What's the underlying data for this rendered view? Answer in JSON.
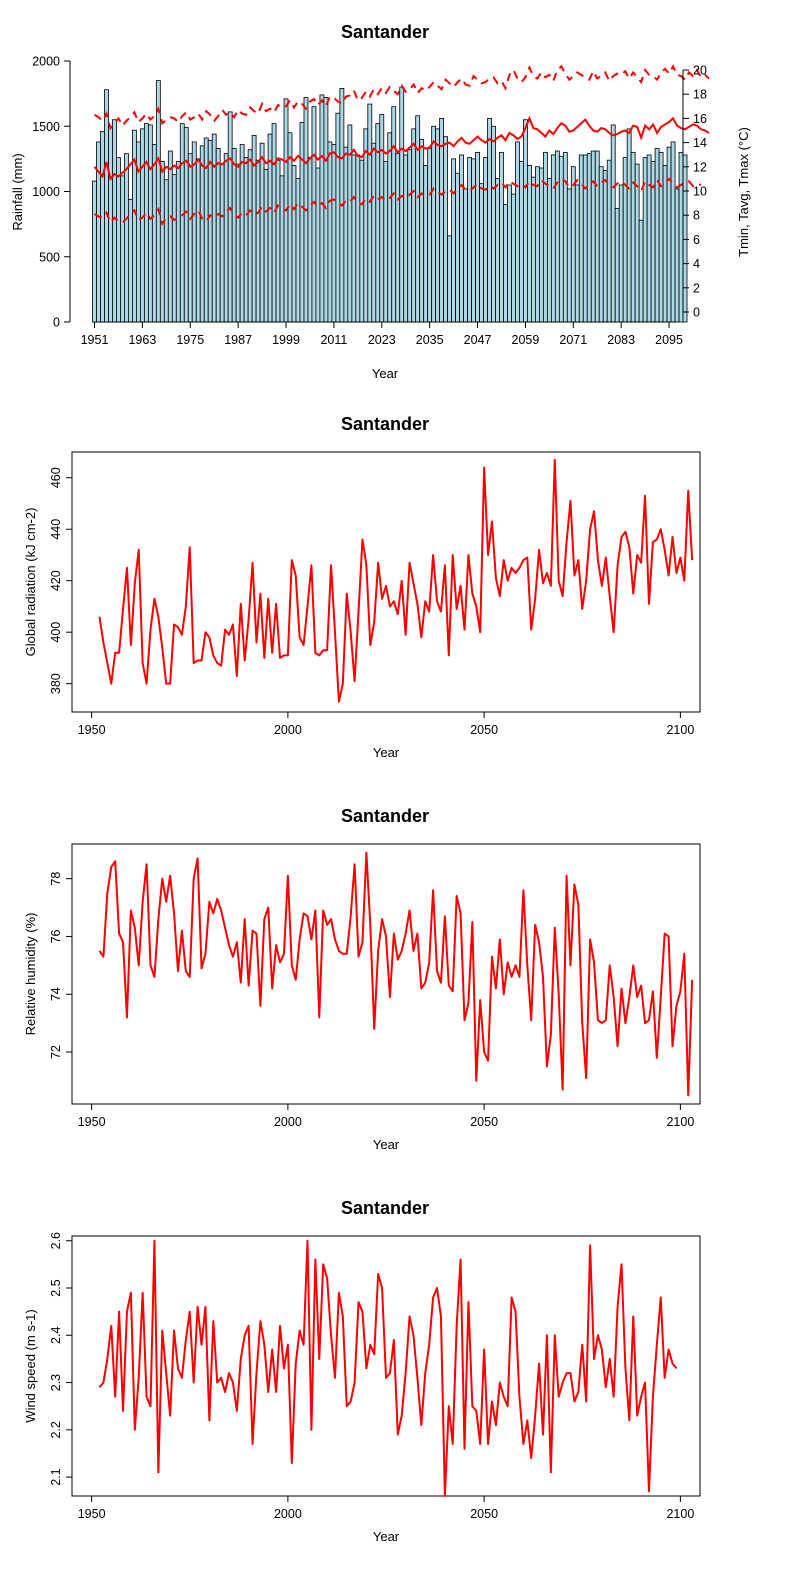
{
  "colors": {
    "line": "#ff0000",
    "bar_fill": "#add8e6",
    "bar_stroke": "#000000"
  },
  "chart_data": [
    {
      "type": "bar+line",
      "title": "Santander",
      "xlabel": "Year",
      "ylabel_left": "Rainfall (mm)",
      "ylabel_right": "Tmin, Tavg, Tmax (°C)",
      "ylim_left": [
        0,
        2000
      ],
      "ylim_right": [
        0,
        20
      ],
      "left_ticks": [
        "0",
        "500",
        "1000",
        "1500",
        "2000"
      ],
      "right_ticks": [
        "0",
        "2",
        "4",
        "6",
        "8",
        "10",
        "12",
        "14",
        "16",
        "18",
        "20"
      ],
      "x_tick_labels": [
        "1951",
        "1963",
        "1975",
        "1987",
        "1999",
        "2011",
        "2023",
        "2035",
        "2047",
        "2059",
        "2071",
        "2083",
        "2095"
      ],
      "years": [
        1951,
        2099
      ],
      "rainfall": [
        1080,
        1380,
        1460,
        1780,
        1500,
        1550,
        1260,
        1120,
        1290,
        940,
        1470,
        1380,
        1480,
        1520,
        1510,
        1360,
        1850,
        1230,
        1090,
        1310,
        1130,
        1230,
        1520,
        1490,
        1290,
        1380,
        1250,
        1350,
        1410,
        1390,
        1440,
        1330,
        1210,
        1290,
        1610,
        1330,
        1210,
        1360,
        1260,
        1320,
        1430,
        1240,
        1370,
        1170,
        1440,
        1520,
        1240,
        1120,
        1710,
        1450,
        1200,
        1100,
        1530,
        1720,
        1260,
        1650,
        1180,
        1740,
        1720,
        1380,
        1360,
        1600,
        1790,
        1340,
        1510,
        1280,
        1280,
        1240,
        1480,
        1670,
        1370,
        1520,
        1590,
        1230,
        1450,
        1650,
        1290,
        1800,
        1280,
        1320,
        1480,
        1580,
        1400,
        1200,
        1330,
        1500,
        1480,
        1560,
        1420,
        660,
        1250,
        1140,
        1280,
        1020,
        1260,
        1250,
        1300,
        1060,
        1260,
        1560,
        1500,
        1100,
        1300,
        900,
        1050,
        980,
        1380,
        1230,
        1550,
        1200,
        1110,
        1190,
        1180,
        1300,
        1100,
        1280,
        1310,
        1270,
        1300,
        1020,
        1190,
        1050,
        1280,
        1280,
        1290,
        1310,
        1310,
        1190,
        1160,
        1240,
        1510,
        870,
        1050,
        1260,
        1480,
        1300,
        1210,
        780,
        1260,
        1280,
        1230,
        1330,
        1300,
        1200,
        1340,
        1380,
        1020,
        1300,
        1280
      ],
      "tavg": [
        12.0,
        11.6,
        11.2,
        12.4,
        11.0,
        11.4,
        11.2,
        11.5,
        11.8,
        12.2,
        12.6,
        11.6,
        12.0,
        12.4,
        11.8,
        12.2,
        12.7,
        11.6,
        12.0,
        11.8,
        12.1,
        11.9,
        12.3,
        12.5,
        12.0,
        12.2,
        12.6,
        12.1,
        11.9,
        12.4,
        12.0,
        12.3,
        12.2,
        12.5,
        12.7,
        12.2,
        12.0,
        12.4,
        12.3,
        12.6,
        12.1,
        12.4,
        12.8,
        12.3,
        12.5,
        12.2,
        12.7,
        12.6,
        12.4,
        12.8,
        12.5,
        12.9,
        12.6,
        12.3,
        12.7,
        13.0,
        12.6,
        12.9,
        12.5,
        13.1,
        13.2,
        12.8,
        12.7,
        13.1,
        13.0,
        13.4,
        12.9,
        12.8,
        13.3,
        13.0,
        13.5,
        13.2,
        13.4,
        13.1,
        13.3,
        13.7,
        13.2,
        13.5,
        13.3,
        13.6,
        13.9,
        13.4,
        13.7,
        13.5,
        13.6,
        14.1,
        13.8,
        13.7,
        13.9,
        14.0,
        13.7,
        14.1,
        14.4,
        14.0,
        13.9,
        14.2,
        14.5,
        14.2,
        14.0,
        14.3,
        14.1,
        14.4,
        14.6,
        14.2,
        14.8,
        14.6,
        14.3,
        14.5,
        15.2,
        16.0,
        15.2,
        15.1,
        14.8,
        14.5,
        15.0,
        14.7,
        15.2,
        15.6,
        15.4,
        14.9,
        15.0,
        15.3,
        15.6,
        15.9,
        15.4,
        15.0,
        14.9,
        15.2,
        15.1,
        14.8,
        14.6,
        14.7,
        14.9,
        15.0,
        14.8,
        15.4,
        15.3,
        14.4,
        15.4,
        15.1,
        15.5,
        14.8,
        15.3,
        15.5,
        15.7,
        16.0,
        15.4,
        15.2,
        15.1,
        15.3,
        15.5,
        15.4,
        15.1,
        15.0,
        14.8
      ],
      "tmax": [
        16.3,
        16.1,
        15.8,
        16.4,
        15.2,
        15.6,
        16.0,
        15.4,
        15.8,
        16.1,
        16.5,
        15.7,
        16.0,
        16.4,
        15.9,
        16.2,
        16.8,
        15.6,
        15.9,
        16.1,
        16.0,
        15.7,
        16.2,
        16.5,
        15.9,
        16.1,
        16.4,
        15.9,
        16.6,
        16.3,
        15.8,
        16.2,
        16.7,
        16.3,
        16.5,
        16.1,
        16.7,
        16.4,
        16.3,
        16.9,
        16.6,
        16.4,
        17.2,
        16.6,
        16.8,
        16.5,
        17.1,
        16.9,
        17.0,
        17.5,
        16.9,
        17.4,
        17.2,
        16.8,
        17.4,
        17.6,
        17.1,
        17.5,
        17.0,
        17.8,
        17.7,
        17.4,
        17.2,
        17.8,
        17.9,
        18.3,
        17.5,
        17.7,
        18.2,
        17.8,
        18.4,
        18.0,
        18.5,
        18.1,
        18.6,
        18.3,
        18.0,
        18.7,
        18.2,
        18.4,
        18.8,
        18.1,
        18.5,
        18.3,
        18.6,
        19.0,
        18.7,
        18.4,
        19.2,
        18.9,
        18.6,
        19.0,
        19.3,
        18.8,
        18.7,
        19.5,
        19.2,
        18.9,
        19.0,
        19.3,
        19.4,
        18.9,
        19.1,
        18.5,
        19.6,
        20.0,
        19.3,
        19.0,
        19.4,
        20.2,
        19.5,
        19.3,
        19.8,
        19.4,
        19.6,
        19.1,
        20.0,
        20.3,
        19.7,
        19.2,
        19.5,
        19.8,
        19.6,
        19.4,
        19.2,
        19.9,
        19.3,
        19.5,
        19.8,
        19.1,
        19.5,
        19.7,
        19.6,
        19.9,
        19.3,
        19.8,
        19.4,
        19.0,
        20.0,
        19.6,
        19.5,
        19.2,
        19.8,
        20.1,
        19.7,
        20.3,
        19.6,
        19.5,
        19.2,
        19.8,
        19.5,
        20.0,
        19.4,
        19.6,
        19.3
      ],
      "tmin": [
        8.1,
        7.9,
        7.8,
        8.2,
        7.4,
        7.8,
        7.5,
        7.4,
        7.7,
        8.1,
        8.4,
        7.6,
        7.8,
        8.2,
        7.7,
        8.0,
        8.5,
        7.3,
        7.8,
        7.9,
        7.6,
        7.8,
        8.0,
        8.3,
        7.7,
        8.1,
        8.4,
        7.7,
        7.5,
        8.0,
        7.8,
        8.1,
        7.9,
        8.3,
        8.6,
        8.0,
        7.8,
        8.2,
        8.0,
        8.4,
        8.1,
        8.2,
        8.7,
        8.3,
        8.6,
        8.2,
        8.8,
        8.5,
        8.4,
        8.9,
        8.5,
        9.0,
        8.7,
        8.4,
        8.8,
        9.1,
        8.7,
        9.0,
        8.6,
        9.2,
        9.3,
        9.0,
        8.8,
        9.2,
        9.1,
        9.5,
        9.0,
        8.9,
        9.4,
        9.1,
        9.6,
        9.3,
        9.5,
        9.2,
        9.4,
        9.8,
        9.3,
        9.6,
        9.4,
        9.7,
        10.0,
        9.5,
        9.8,
        9.6,
        9.7,
        10.2,
        9.9,
        9.7,
        10.0,
        10.1,
        9.8,
        10.2,
        10.5,
        10.1,
        10.0,
        10.3,
        10.6,
        10.2,
        10.1,
        10.4,
        10.2,
        10.5,
        10.7,
        10.3,
        10.8,
        10.6,
        10.4,
        10.6,
        10.3,
        10.8,
        10.5,
        10.4,
        10.9,
        10.6,
        10.4,
        10.2,
        10.7,
        11.0,
        10.8,
        10.3,
        10.5,
        10.9,
        10.6,
        10.2,
        10.5,
        10.8,
        10.4,
        10.7,
        10.9,
        10.5,
        10.3,
        10.6,
        10.8,
        10.5,
        10.2,
        10.7,
        10.4,
        10.0,
        10.8,
        10.5,
        10.3,
        10.9,
        10.4,
        10.7,
        11.0,
        10.6,
        10.3,
        10.5,
        10.7,
        10.8,
        10.4,
        10.6,
        10.5
      ]
    },
    {
      "type": "line",
      "title": "Santander",
      "xlabel": "Year",
      "ylabel": "Global radiation (kJ cm-2)",
      "xlim": [
        1945,
        2105
      ],
      "ylim": [
        369,
        470
      ],
      "x_ticks": [
        1950,
        2000,
        2050,
        2100
      ],
      "y_ticks": [
        380,
        400,
        420,
        440,
        460
      ],
      "x_start": 1952,
      "values": [
        406,
        396,
        388,
        380,
        392,
        392,
        409,
        425,
        395,
        419,
        432,
        388,
        380,
        401,
        413,
        406,
        394,
        380,
        380,
        403,
        402,
        399,
        410,
        433,
        388,
        389,
        389,
        400,
        398,
        391,
        388,
        387,
        401,
        399,
        403,
        383,
        411,
        389,
        405,
        427,
        396,
        415,
        390,
        413,
        392,
        411,
        390,
        391,
        391,
        428,
        422,
        398,
        395,
        410,
        426,
        392,
        391,
        393,
        393,
        426,
        400,
        373,
        380,
        415,
        400,
        381,
        408,
        436,
        426,
        395,
        404,
        427,
        413,
        418,
        410,
        412,
        407,
        420,
        399,
        427,
        419,
        411,
        398,
        412,
        408,
        430,
        412,
        408,
        426,
        391,
        430,
        409,
        418,
        401,
        430,
        415,
        410,
        400,
        464,
        430,
        443,
        421,
        414,
        428,
        420,
        425,
        423,
        425,
        428,
        429,
        401,
        413,
        432,
        419,
        423,
        418,
        467,
        420,
        414,
        435,
        451,
        422,
        428,
        409,
        420,
        440,
        447,
        428,
        418,
        429,
        414,
        400,
        426,
        437,
        439,
        433,
        415,
        430,
        427,
        453,
        411,
        435,
        436,
        440,
        432,
        422,
        437,
        423,
        429,
        420,
        455,
        428
      ]
    },
    {
      "type": "line",
      "title": "Santander",
      "xlabel": "Year",
      "ylabel": "Relative humidity (%)",
      "xlim": [
        1945,
        2105
      ],
      "ylim": [
        70.2,
        79.2
      ],
      "x_ticks": [
        1950,
        2000,
        2050,
        2100
      ],
      "y_ticks": [
        72,
        74,
        76,
        78
      ],
      "x_start": 1952,
      "values": [
        75.5,
        75.3,
        77.5,
        78.4,
        78.6,
        76.1,
        75.8,
        73.2,
        76.9,
        76.3,
        75.0,
        77.2,
        78.5,
        75.0,
        74.6,
        76.6,
        78.0,
        77.2,
        78.1,
        76.8,
        74.8,
        76.2,
        74.8,
        74.6,
        78.0,
        78.7,
        74.9,
        75.4,
        77.2,
        76.8,
        77.3,
        76.9,
        76.3,
        75.7,
        75.3,
        75.8,
        74.4,
        76.6,
        74.3,
        76.2,
        76.1,
        73.6,
        76.6,
        77.0,
        74.2,
        75.7,
        75.1,
        75.4,
        78.1,
        75.0,
        74.5,
        75.9,
        76.8,
        76.7,
        75.9,
        76.9,
        73.2,
        76.9,
        76.4,
        76.6,
        75.9,
        75.5,
        75.4,
        75.4,
        76.7,
        78.5,
        75.3,
        75.8,
        78.9,
        76.4,
        72.8,
        75.5,
        76.6,
        76.0,
        73.9,
        76.1,
        75.2,
        75.5,
        76.1,
        76.9,
        75.5,
        76.1,
        74.2,
        74.4,
        75.1,
        77.6,
        74.8,
        74.4,
        76.7,
        74.3,
        74.1,
        77.4,
        76.8,
        73.1,
        73.7,
        76.5,
        71.0,
        73.8,
        72.0,
        71.7,
        75.3,
        74.2,
        75.9,
        74.0,
        75.1,
        74.6,
        75.0,
        74.6,
        77.6,
        75.0,
        73.1,
        76.4,
        75.8,
        74.6,
        71.5,
        72.6,
        76.3,
        74.0,
        70.7,
        78.1,
        75.0,
        77.8,
        77.1,
        73.0,
        71.1,
        75.9,
        75.1,
        73.1,
        73.0,
        73.1,
        75.0,
        73.9,
        72.2,
        74.2,
        73.0,
        73.9,
        75.0,
        73.9,
        74.3,
        73.0,
        73.1,
        74.1,
        71.8,
        73.9,
        76.1,
        76.0,
        72.2,
        73.6,
        74.1,
        75.4,
        70.5,
        74.5
      ]
    },
    {
      "type": "line",
      "title": "Santander",
      "xlabel": "Year",
      "ylabel": "Wind speed (m s-1)",
      "xlim": [
        1945,
        2105
      ],
      "ylim": [
        2.06,
        2.61
      ],
      "x_ticks": [
        1950,
        2000,
        2050,
        2100
      ],
      "y_ticks": [
        2.1,
        2.2,
        2.3,
        2.4,
        2.5,
        2.6
      ],
      "x_start": 1952,
      "values": [
        2.29,
        2.3,
        2.35,
        2.42,
        2.27,
        2.45,
        2.24,
        2.45,
        2.49,
        2.2,
        2.31,
        2.49,
        2.27,
        2.25,
        2.6,
        2.11,
        2.41,
        2.32,
        2.23,
        2.41,
        2.33,
        2.31,
        2.39,
        2.45,
        2.3,
        2.46,
        2.38,
        2.46,
        2.22,
        2.43,
        2.3,
        2.31,
        2.28,
        2.32,
        2.3,
        2.24,
        2.35,
        2.4,
        2.42,
        2.17,
        2.32,
        2.43,
        2.38,
        2.28,
        2.37,
        2.28,
        2.42,
        2.33,
        2.38,
        2.13,
        2.34,
        2.41,
        2.38,
        2.6,
        2.2,
        2.56,
        2.35,
        2.55,
        2.52,
        2.4,
        2.31,
        2.49,
        2.44,
        2.25,
        2.26,
        2.3,
        2.47,
        2.45,
        2.33,
        2.38,
        2.36,
        2.53,
        2.5,
        2.31,
        2.32,
        2.39,
        2.19,
        2.23,
        2.32,
        2.44,
        2.4,
        2.31,
        2.21,
        2.32,
        2.38,
        2.48,
        2.5,
        2.44,
        2.06,
        2.25,
        2.17,
        2.42,
        2.56,
        2.16,
        2.47,
        2.25,
        2.24,
        2.17,
        2.37,
        2.17,
        2.26,
        2.21,
        2.3,
        2.27,
        2.25,
        2.48,
        2.45,
        2.27,
        2.17,
        2.22,
        2.14,
        2.23,
        2.34,
        2.19,
        2.4,
        2.11,
        2.4,
        2.27,
        2.3,
        2.32,
        2.32,
        2.26,
        2.28,
        2.38,
        2.26,
        2.59,
        2.35,
        2.4,
        2.37,
        2.29,
        2.35,
        2.27,
        2.46,
        2.55,
        2.33,
        2.22,
        2.44,
        2.23,
        2.27,
        2.3,
        2.07,
        2.27,
        2.38,
        2.48,
        2.31,
        2.37,
        2.34,
        2.33
      ]
    }
  ]
}
